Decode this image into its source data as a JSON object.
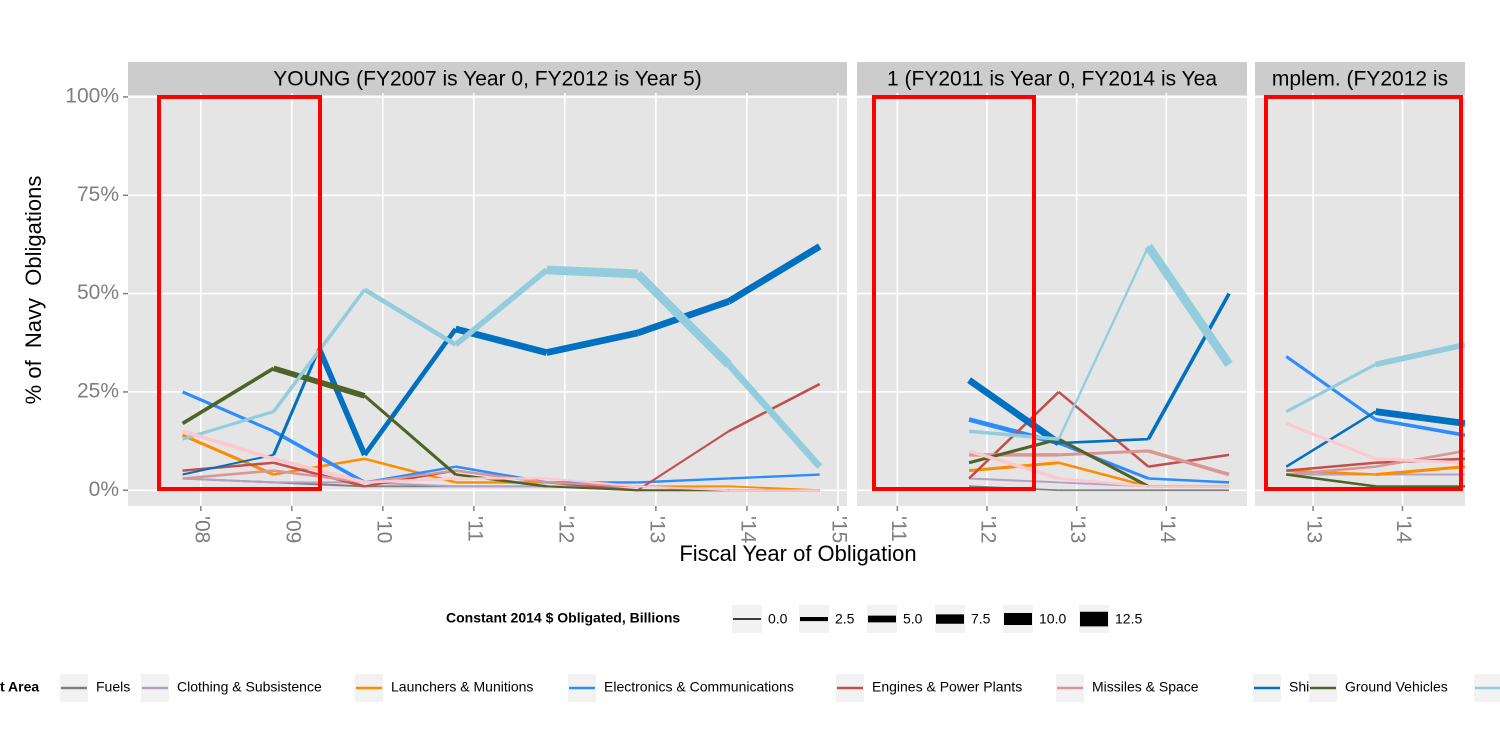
{
  "chart_data": {
    "type": "line",
    "ylabel": "% of  Navy  Obligations",
    "xlabel": "Fiscal Year of Obligation",
    "ylim": [
      -4,
      101
    ],
    "yticks": [
      {
        "value": 0,
        "label": "0%"
      },
      {
        "value": 25,
        "label": "25%"
      },
      {
        "value": 50,
        "label": "50%"
      },
      {
        "value": 75,
        "label": "75%"
      },
      {
        "value": 100,
        "label": "100%"
      }
    ],
    "grid": true,
    "size_legend": {
      "title": "Constant 2014 $ Obligated, Billions",
      "ticks": [
        {
          "value": 0,
          "label": "0.0"
        },
        2.5,
        {
          "value": 5,
          "label": "5.0"
        },
        7.5,
        {
          "value": 10,
          "label": "10.0"
        },
        12.5
      ]
    },
    "legend": {
      "title": "t Area",
      "entries": [
        {
          "name": "Fuels",
          "color": "#808080"
        },
        {
          "name": "Clothing & Subsistence",
          "color": "#b2a1c7"
        },
        {
          "name": "Launchers & Munitions",
          "color": "#ff8c00"
        },
        {
          "name": "Electronics & Communications",
          "color": "#2b8cff"
        },
        {
          "name": "Engines & Power Plants",
          "color": "#c0504d"
        },
        {
          "name": "Missiles & Space",
          "color": "#d99694"
        },
        {
          "name": "Ships",
          "color": "#0070c0"
        },
        {
          "name": "Ground Vehicles",
          "color": "#4f6228"
        },
        {
          "name": null,
          "color": "#93cddd"
        },
        {
          "name": null,
          "color": "#ffc7ce"
        }
      ]
    },
    "panels": [
      {
        "title": "YOUNG (FY2007 is Year 0, FY2012 is Year 5)",
        "xlim": [
          2007.2,
          2015.1
        ],
        "xticks": [
          {
            "value": 2008,
            "label": "'08"
          },
          {
            "value": 2009,
            "label": "'09"
          },
          {
            "value": 2010,
            "label": "'10"
          },
          {
            "value": 2011,
            "label": "'11"
          },
          {
            "value": 2012,
            "label": "'12"
          },
          {
            "value": 2013,
            "label": "'13"
          },
          {
            "value": 2014,
            "label": "'14"
          },
          {
            "value": 2015,
            "label": "'15"
          }
        ],
        "x": [
          2007.8,
          2008.8,
          2009.8,
          2010.8,
          2011.8,
          2012.8,
          2013.8,
          2014.8
        ],
        "series": [
          {
            "values": [
              3,
              2,
              1,
              1,
              1,
              0,
              0,
              0
            ],
            "sizes": [
              0.5,
              0.5,
              0.3,
              0.3,
              0.3,
              0.2,
              0.2,
              0.2
            ]
          },
          {
            "values": [
              3,
              2,
              2,
              1,
              1,
              1,
              0,
              0
            ],
            "sizes": [
              0.5,
              0.5,
              0.4,
              0.3,
              0.3,
              0.3,
              0.2,
              0.2
            ]
          },
          {
            "values": [
              14,
              4,
              8,
              2,
              2,
              1,
              1,
              0
            ],
            "sizes": [
              1.5,
              1,
              1,
              0.8,
              0.6,
              0.5,
              0.4,
              0.3
            ]
          },
          {
            "values": [
              25,
              15,
              2,
              6,
              2,
              2,
              3,
              4
            ],
            "sizes": [
              1.5,
              2,
              0.8,
              1,
              0.8,
              0.8,
              0.8,
              0.8
            ]
          },
          {
            "values": [
              5,
              7,
              1,
              5,
              2,
              0,
              15,
              27
            ],
            "sizes": [
              1,
              1,
              0.6,
              0.8,
              0.6,
              0.6,
              1,
              1
            ]
          },
          {
            "values": [
              3,
              5,
              2,
              5,
              2,
              1,
              0,
              0
            ],
            "sizes": [
              1,
              1,
              0.6,
              0.8,
              0.6,
              0.5,
              0.4,
              0.3
            ]
          },
          {
            "x": [
              2007.8,
              2008.8,
              2009.3,
              2009.8,
              2010.8,
              2011.8,
              2012.8,
              2013.8,
              2014.8
            ],
            "values": [
              4,
              9,
              36,
              9,
              41,
              35,
              40,
              48,
              62
            ],
            "sizes": [
              0.5,
              1.5,
              4,
              3,
              5,
              5,
              5,
              5,
              5
            ]
          },
          {
            "values": [
              17,
              31,
              24,
              4,
              1,
              0,
              0,
              0
            ],
            "sizes": [
              2,
              4,
              1.5,
              1,
              0.5,
              0.4,
              0.3,
              0.3
            ]
          },
          {
            "values": [
              13,
              20,
              51,
              37,
              56,
              55,
              32,
              6
            ],
            "sizes": [
              1.5,
              2,
              3,
              4,
              7,
              7,
              5,
              3
            ]
          },
          {
            "values": [
              15,
              8,
              2,
              3,
              3,
              1,
              0,
              0
            ],
            "sizes": [
              2,
              2,
              1,
              0.8,
              0.6,
              0.5,
              0.4,
              0.3
            ]
          }
        ]
      },
      {
        "title": "1 (FY2011 is Year 0, FY2014 is Yea",
        "xlim": [
          2010.55,
          2014.9
        ],
        "xticks": [
          {
            "value": 2011,
            "label": "'11"
          },
          {
            "value": 2012,
            "label": "'12"
          },
          {
            "value": 2013,
            "label": "'13"
          },
          {
            "value": 2014,
            "label": "'14"
          }
        ],
        "x": [
          2011.8,
          2012.8,
          2013.8,
          2014.7
        ],
        "series": [
          {
            "values": [
              1,
              0,
              0,
              0
            ],
            "sizes": [
              0.3,
              0.3,
              0.2,
              0.2
            ]
          },
          {
            "values": [
              3,
              2,
              1,
              1
            ],
            "sizes": [
              0.5,
              0.4,
              0.3,
              0.3
            ]
          },
          {
            "values": [
              5,
              7,
              1,
              1
            ],
            "sizes": [
              1.5,
              1,
              0.6,
              0.6
            ]
          },
          {
            "values": [
              18,
              12,
              3,
              2
            ],
            "sizes": [
              3,
              1.5,
              1,
              1
            ]
          },
          {
            "values": [
              3,
              25,
              6,
              9
            ],
            "sizes": [
              1,
              1,
              1,
              1
            ]
          },
          {
            "values": [
              9,
              9,
              10,
              4
            ],
            "sizes": [
              2,
              1.5,
              2,
              2
            ]
          },
          {
            "values": [
              28,
              12,
              13,
              50
            ],
            "sizes": [
              5,
              1,
              2,
              2
            ]
          },
          {
            "values": [
              7,
              13,
              1,
              1
            ],
            "sizes": [
              1.5,
              1.5,
              0.5,
              0.5
            ]
          },
          {
            "values": [
              15,
              13,
              62,
              32
            ],
            "sizes": [
              2,
              0.8,
              7,
              7
            ]
          },
          {
            "values": [
              10,
              3,
              1,
              1
            ],
            "sizes": [
              2,
              1,
              0.5,
              0.5
            ]
          }
        ]
      },
      {
        "title": "mplem. (FY2012 is",
        "xlim": [
          2012.35,
          2014.7
        ],
        "xticks": [
          {
            "value": 2013,
            "label": "'13"
          },
          {
            "value": 2014,
            "label": "'14"
          }
        ],
        "x": [
          2012.7,
          2013.7,
          2014.7
        ],
        "series": [
          {
            "values": [
              4,
              1,
              1
            ],
            "sizes": [
              0.5,
              0.3,
              0.3
            ]
          },
          {
            "values": [
              4,
              4,
              4
            ],
            "sizes": [
              0.5,
              0.5,
              0.5
            ]
          },
          {
            "values": [
              5,
              4,
              6
            ],
            "sizes": [
              1,
              1.5,
              1.5
            ]
          },
          {
            "values": [
              34,
              18,
              14
            ],
            "sizes": [
              1.5,
              2,
              2
            ]
          },
          {
            "values": [
              5,
              7,
              8
            ],
            "sizes": [
              1,
              1,
              1
            ]
          },
          {
            "values": [
              4,
              6,
              10
            ],
            "sizes": [
              1,
              1,
              1
            ]
          },
          {
            "values": [
              6,
              20,
              17
            ],
            "sizes": [
              1,
              5,
              5
            ]
          },
          {
            "values": [
              4,
              1,
              1
            ],
            "sizes": [
              1,
              0.5,
              0.5
            ]
          },
          {
            "values": [
              20,
              32,
              37
            ],
            "sizes": [
              1.5,
              4,
              4
            ]
          },
          {
            "values": [
              17,
              8,
              7
            ],
            "sizes": [
              1.5,
              1.5,
              1.5
            ]
          }
        ]
      }
    ]
  }
}
